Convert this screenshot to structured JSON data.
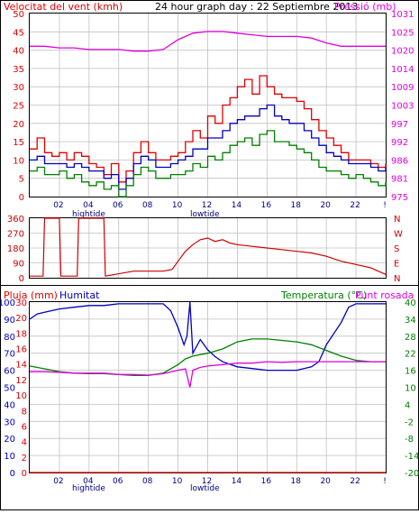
{
  "header": {
    "left_label": "Velocitat del vent (kmh)",
    "center_label": "24 hour graph day : 22 Septiembre 2013",
    "right_label": "Pressió (mb)"
  },
  "bottom": {
    "left_label": "Pluja (mm)",
    "humidity_label": "Humitat",
    "temp_label": "Temperatura (°C)",
    "dew_label": "Punt rosada"
  },
  "tide_labels": {
    "high": "hightide",
    "low": "lowtide"
  },
  "colors": {
    "wind_gust": "#e00000",
    "wind_avg": "#0000c0",
    "wind_low": "#008000",
    "pressure": "#e000e0",
    "direction": "#d00000",
    "humidity": "#0000c0",
    "temperature": "#008000",
    "dewpoint": "#e000e0",
    "rain": "#e00000",
    "grid": "#c0c0c0"
  },
  "chart_data": [
    {
      "type": "line",
      "x_ticks": [
        "02",
        "04",
        "06",
        "08",
        "10",
        "12",
        "14",
        "16",
        "18",
        "20",
        "22",
        "!"
      ],
      "x_range_hours": [
        0,
        24
      ],
      "ylim_left": [
        0,
        50
      ],
      "y_ticks_left": [
        "0",
        "5",
        "10",
        "15",
        "20",
        "25",
        "30",
        "35",
        "40",
        "45",
        "50"
      ],
      "ylim_right": [
        975,
        1031
      ],
      "y_ticks_right": [
        "975",
        "981",
        "986",
        "992",
        "997",
        "1003",
        "1009",
        "1014",
        "1020",
        "1025",
        "1031"
      ],
      "grid": true,
      "series": [
        {
          "axis": "left",
          "color": "wind_gust",
          "x": [
            0,
            0.5,
            1,
            1.5,
            2,
            2.5,
            3,
            3.5,
            4,
            4.5,
            5,
            5.5,
            6,
            6.5,
            7,
            7.5,
            8,
            8.5,
            9,
            9.5,
            10,
            10.5,
            11,
            11.5,
            12,
            12.5,
            13,
            13.5,
            14,
            14.5,
            15,
            15.5,
            16,
            16.5,
            17,
            17.5,
            18,
            18.5,
            19,
            19.5,
            20,
            20.5,
            21,
            21.5,
            22,
            22.5,
            23,
            23.5,
            24
          ],
          "values": [
            13,
            16,
            12,
            11,
            12,
            10,
            12,
            11,
            9,
            8,
            6,
            9,
            4,
            7,
            12,
            15,
            12,
            10,
            10,
            11,
            12,
            15,
            18,
            16,
            22,
            20,
            25,
            27,
            30,
            32,
            28,
            33,
            30,
            28,
            27,
            27,
            26,
            24,
            21,
            18,
            16,
            14,
            12,
            10,
            10,
            10,
            9,
            8,
            9
          ]
        },
        {
          "axis": "left",
          "color": "wind_avg",
          "x": [
            0,
            0.5,
            1,
            1.5,
            2,
            2.5,
            3,
            3.5,
            4,
            4.5,
            5,
            5.5,
            6,
            6.5,
            7,
            7.5,
            8,
            8.5,
            9,
            9.5,
            10,
            10.5,
            11,
            11.5,
            12,
            12.5,
            13,
            13.5,
            14,
            14.5,
            15,
            15.5,
            16,
            16.5,
            17,
            17.5,
            18,
            18.5,
            19,
            19.5,
            20,
            20.5,
            21,
            21.5,
            22,
            22.5,
            23,
            23.5,
            24
          ],
          "values": [
            10,
            11,
            9,
            9,
            9,
            8,
            9,
            8,
            7,
            7,
            5,
            6,
            2,
            5,
            9,
            11,
            10,
            8,
            8,
            9,
            10,
            11,
            13,
            13,
            16,
            16,
            18,
            20,
            21,
            22,
            22,
            24,
            25,
            22,
            21,
            20,
            20,
            18,
            16,
            14,
            12,
            11,
            10,
            9,
            9,
            9,
            8,
            7,
            8
          ]
        },
        {
          "axis": "left",
          "color": "wind_low",
          "x": [
            0,
            0.5,
            1,
            1.5,
            2,
            2.5,
            3,
            3.5,
            4,
            4.5,
            5,
            5.5,
            6,
            6.5,
            7,
            7.5,
            8,
            8.5,
            9,
            9.5,
            10,
            10.5,
            11,
            11.5,
            12,
            12.5,
            13,
            13.5,
            14,
            14.5,
            15,
            15.5,
            16,
            16.5,
            17,
            17.5,
            18,
            18.5,
            19,
            19.5,
            20,
            20.5,
            21,
            21.5,
            22,
            22.5,
            23,
            23.5,
            24
          ],
          "values": [
            7,
            8,
            6,
            6,
            7,
            5,
            6,
            4,
            3,
            4,
            2,
            3,
            0,
            3,
            6,
            8,
            7,
            5,
            5,
            6,
            6,
            7,
            9,
            8,
            11,
            10,
            12,
            14,
            15,
            16,
            14,
            17,
            18,
            15,
            15,
            14,
            13,
            12,
            10,
            8,
            7,
            7,
            6,
            5,
            6,
            5,
            4,
            3,
            4
          ]
        },
        {
          "axis": "right",
          "color": "pressure",
          "x": [
            0,
            1,
            2,
            3,
            4,
            5,
            6,
            7,
            8,
            9,
            10,
            11,
            12,
            13,
            14,
            15,
            16,
            17,
            18,
            19,
            20,
            21,
            22,
            23,
            24
          ],
          "values": [
            1021,
            1021,
            1020.5,
            1020.5,
            1020,
            1020,
            1020,
            1019.5,
            1019.5,
            1020,
            1023,
            1025,
            1025.5,
            1025.5,
            1025,
            1024.5,
            1024,
            1024,
            1024,
            1023.5,
            1022,
            1021,
            1021,
            1021,
            1021
          ]
        }
      ]
    },
    {
      "type": "line",
      "ylim": [
        0,
        360
      ],
      "y_ticks": [
        "0",
        "90",
        "180",
        "270",
        "360"
      ],
      "y_ticks_right": [
        "N",
        "E",
        "S",
        "W",
        "N"
      ],
      "grid": true,
      "series": [
        {
          "color": "direction",
          "x": [
            0,
            0.9,
            1.0,
            2.0,
            2.1,
            3.2,
            3.3,
            5.0,
            5.1,
            7.0,
            9.0,
            9.6,
            10.0,
            10.5,
            11.0,
            11.5,
            12.0,
            12.5,
            13.0,
            13.5,
            14.0,
            15.0,
            16.0,
            17.0,
            18.0,
            19.0,
            20.0,
            21.0,
            22.0,
            23.0,
            23.5,
            24.0
          ],
          "values": [
            10,
            10,
            360,
            360,
            10,
            10,
            360,
            360,
            10,
            40,
            40,
            50,
            100,
            160,
            200,
            230,
            240,
            220,
            230,
            210,
            200,
            190,
            180,
            170,
            160,
            150,
            130,
            100,
            80,
            60,
            40,
            20
          ]
        }
      ]
    },
    {
      "type": "line",
      "ylim_left": [
        0,
        100
      ],
      "y_ticks_left": [
        "0",
        "10",
        "20",
        "30",
        "40",
        "50",
        "60",
        "70",
        "80",
        "90",
        "100"
      ],
      "y_ticks_left_secondary": [
        "0",
        "2",
        "4",
        "6",
        "8",
        "10",
        "12",
        "14",
        "16",
        "18",
        "20",
        "30"
      ],
      "ylim_right": [
        -20,
        40
      ],
      "y_ticks_right": [
        "-20",
        "-14",
        "-8",
        "-2",
        "4",
        "10",
        "16",
        "22",
        "28",
        "34",
        "40"
      ],
      "grid": true,
      "series": [
        {
          "axis": "left",
          "color": "humidity",
          "x": [
            0,
            0.5,
            1,
            2,
            3,
            4,
            5,
            6,
            7,
            8,
            9,
            9.5,
            10,
            10.4,
            10.6,
            10.8,
            11,
            11.5,
            12,
            12.5,
            13,
            14,
            15,
            16,
            17,
            18,
            19,
            19.5,
            20,
            21,
            21.5,
            22,
            23,
            24
          ],
          "values": [
            90,
            93,
            94,
            96,
            97,
            98,
            98,
            99,
            99,
            99,
            99,
            95,
            85,
            75,
            80,
            100,
            70,
            78,
            72,
            68,
            65,
            62,
            61,
            60,
            60,
            60,
            62,
            65,
            75,
            88,
            97,
            99,
            99,
            99
          ]
        },
        {
          "axis": "right",
          "color": "temperature",
          "x": [
            0,
            1,
            2,
            3,
            4,
            5,
            6,
            7,
            8,
            9,
            10,
            10.5,
            11,
            12,
            13,
            14,
            15,
            16,
            17,
            18,
            19,
            20,
            21,
            22,
            23,
            24
          ],
          "values": [
            17.5,
            16.5,
            15.5,
            15,
            14.8,
            14.8,
            14.5,
            14.2,
            14.2,
            15,
            18,
            20,
            21,
            22,
            23.5,
            26,
            27,
            27,
            26.5,
            26,
            25,
            23,
            21,
            19.5,
            19,
            19
          ]
        },
        {
          "axis": "right",
          "color": "dewpoint",
          "x": [
            0,
            1,
            2,
            3,
            4,
            5,
            6,
            7,
            8,
            9,
            10,
            10.5,
            10.8,
            11,
            11.5,
            12,
            13,
            14,
            15,
            16,
            17,
            18,
            19,
            20,
            21,
            22,
            23,
            24
          ],
          "values": [
            15.5,
            15.5,
            15.3,
            15,
            15,
            15,
            14.5,
            14.5,
            14.3,
            14.8,
            16,
            16.5,
            10,
            16,
            17,
            17.5,
            18,
            18.5,
            18.5,
            19,
            18.8,
            19,
            19,
            19,
            19,
            19,
            19,
            19
          ]
        },
        {
          "axis": "left",
          "color": "rain",
          "x": [
            0,
            24
          ],
          "values": [
            0,
            0
          ]
        }
      ]
    }
  ]
}
